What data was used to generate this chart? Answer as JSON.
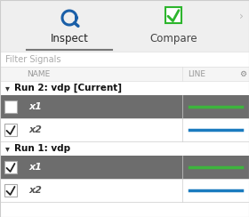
{
  "panel_bg": "#f5f5f5",
  "tab_inspect": "Inspect",
  "tab_compare": "Compare",
  "filter_label": "Filter Signals",
  "col_name": "NAME",
  "col_line": "LINE",
  "run2_label": "Run 2: vdp [Current]",
  "run1_label": "Run 1: vdp",
  "rows": [
    {
      "name": "x1",
      "checked": false,
      "highlighted": true,
      "line_color": "#3db53d"
    },
    {
      "name": "x2",
      "checked": true,
      "highlighted": false,
      "line_color": "#1a7bbf"
    },
    {
      "name": "x1",
      "checked": true,
      "highlighted": true,
      "line_color": "#3db53d"
    },
    {
      "name": "x2",
      "checked": true,
      "highlighted": false,
      "line_color": "#1a7bbf"
    }
  ],
  "highlight_color": "#6d6d6d",
  "normal_row_color": "#ffffff",
  "header_text_color": "#999999",
  "group_label_color": "#111111",
  "tab_underline_color": "#777777",
  "inspect_icon_color": "#1a5fa8",
  "compare_check_color": "#2db52d",
  "chevron_color": "#bbbbbb",
  "figw": 2.8,
  "figh": 2.44,
  "dpi": 100
}
